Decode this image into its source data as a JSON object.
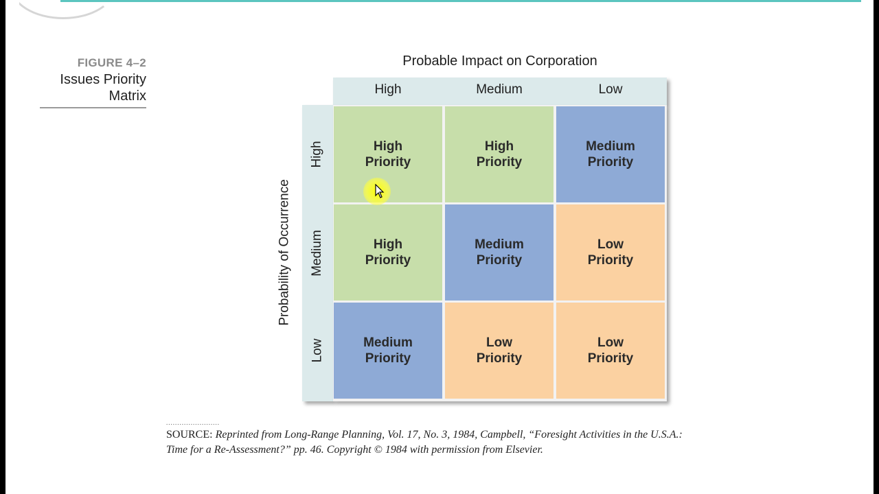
{
  "figure": {
    "label": "FIGURE 4–2",
    "title_line1": "Issues Priority",
    "title_line2": "Matrix"
  },
  "matrix": {
    "top_axis_title": "Probable Impact on Corporation",
    "side_axis_title": "Probability of Occurrence",
    "columns": [
      "High",
      "Medium",
      "Low"
    ],
    "rows": [
      "High",
      "Medium",
      "Low"
    ],
    "cells": [
      [
        {
          "line1": "High",
          "line2": "Priority",
          "level": "high"
        },
        {
          "line1": "High",
          "line2": "Priority",
          "level": "high"
        },
        {
          "line1": "Medium",
          "line2": "Priority",
          "level": "medium"
        }
      ],
      [
        {
          "line1": "High",
          "line2": "Priority",
          "level": "high"
        },
        {
          "line1": "Medium",
          "line2": "Priority",
          "level": "medium"
        },
        {
          "line1": "Low",
          "line2": "Priority",
          "level": "low"
        }
      ],
      [
        {
          "line1": "Medium",
          "line2": "Priority",
          "level": "medium"
        },
        {
          "line1": "Low",
          "line2": "Priority",
          "level": "low"
        },
        {
          "line1": "Low",
          "line2": "Priority",
          "level": "low"
        }
      ]
    ]
  },
  "colors": {
    "high": "#c7deaa",
    "medium": "#8eaad6",
    "low": "#fbd1a1",
    "header": "#dceaeb",
    "accent_rule": "#5cc5bf"
  },
  "source": {
    "dots": "........................",
    "label": "SOURCE:",
    "text_line1": "Reprinted from Long-Range Planning, Vol. 17, No. 3, 1984, Campbell, “Foresight Activities in the U.S.A.:",
    "text_line2": "Time for a Re-Assessment?” pp. 46. Copyright © 1984 with permission from Elsevier."
  }
}
